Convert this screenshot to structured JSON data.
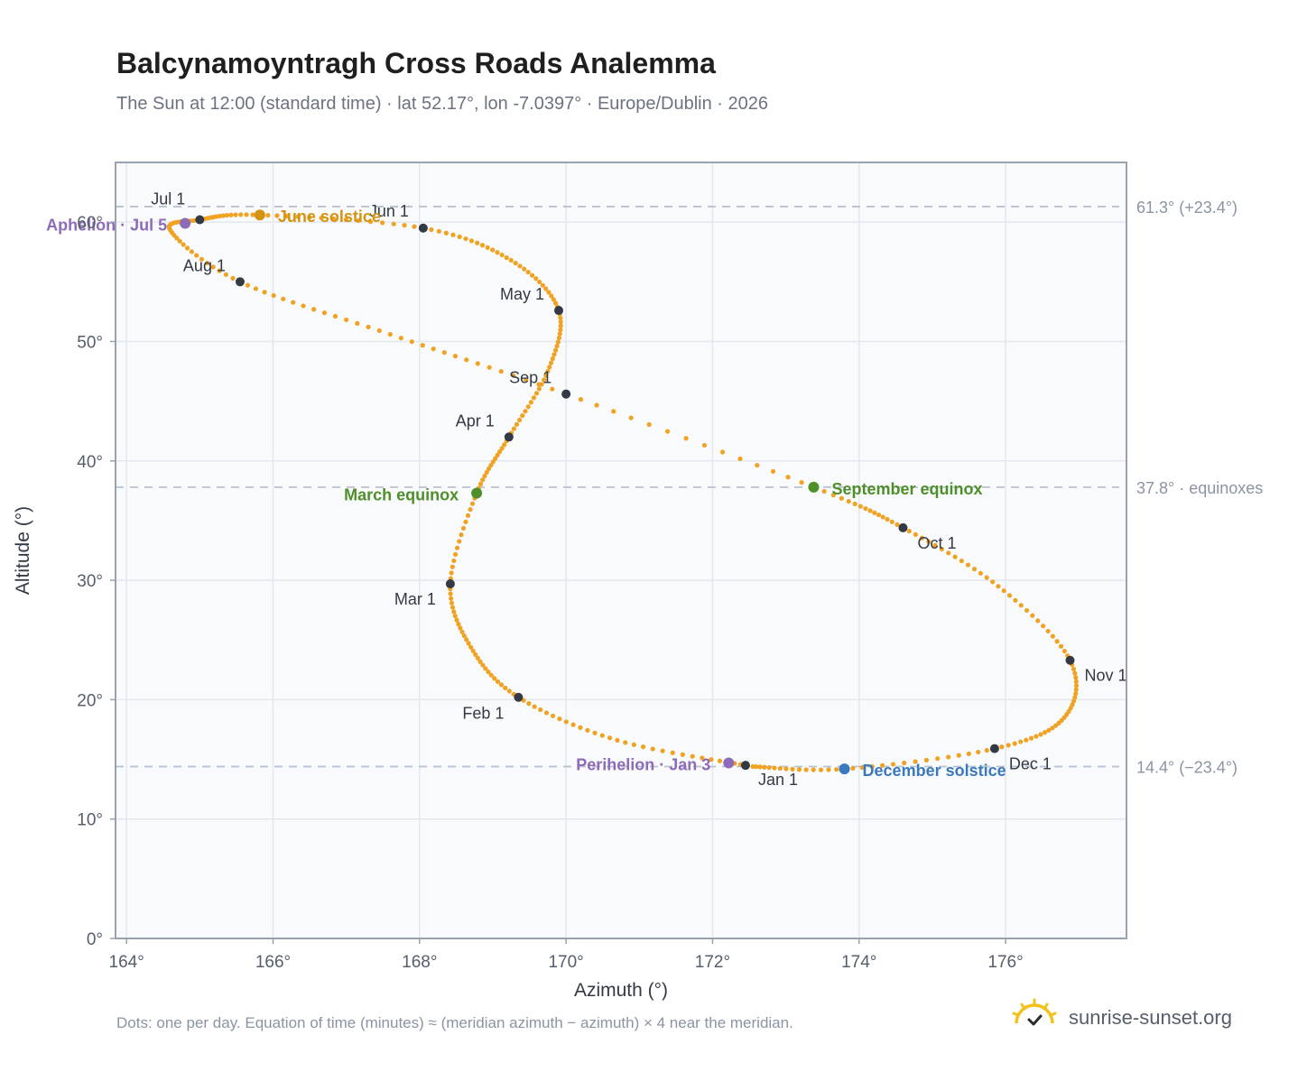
{
  "header": {
    "title": "Balcynamoyntragh Cross Roads Analemma",
    "subtitle": "The Sun at 12:00 (standard time) · lat 52.17°, lon -7.0397° · Europe/Dublin · 2026"
  },
  "footer": {
    "note": "Dots: one per day. Equation of time (minutes) ≈ (meridian azimuth − azimuth) × 4 near the meridian.",
    "brand": "sunrise-sunset.org",
    "brand_icon": "sun-logo-icon"
  },
  "colors": {
    "path": "#f0a323",
    "month_marker": "#333a44",
    "june_solstice": "#d4940f",
    "december_solstice": "#3a78bf",
    "equinox": "#4f8f2a",
    "apsis": "#8e6bb8",
    "plot_bg": "#f8fafc",
    "grid": "#e3e8ee",
    "reference_line": "#b8c2cf"
  },
  "chart_data": {
    "type": "scatter",
    "xlabel": "Azimuth (°)",
    "ylabel": "Altitude (°)",
    "xlim": [
      163.85,
      177.65
    ],
    "ylim": [
      0,
      65
    ],
    "x_ticks": [
      164,
      166,
      168,
      170,
      172,
      174,
      176
    ],
    "x_tick_labels": [
      "164°",
      "166°",
      "168°",
      "170°",
      "172°",
      "174°",
      "176°"
    ],
    "y_ticks": [
      0,
      10,
      20,
      30,
      40,
      50,
      60
    ],
    "y_tick_labels": [
      "0°",
      "10°",
      "20°",
      "30°",
      "40°",
      "50°",
      "60°"
    ],
    "grid": true,
    "path_keypoints": [
      {
        "date": "Jan 1",
        "az": 172.45,
        "alt": 14.5
      },
      {
        "date": "Jan 15",
        "az": 170.7,
        "alt": 16.6
      },
      {
        "date": "Feb 1",
        "az": 169.35,
        "alt": 20.2
      },
      {
        "date": "Feb 15",
        "az": 168.7,
        "alt": 24.4
      },
      {
        "date": "Mar 1",
        "az": 168.42,
        "alt": 29.7
      },
      {
        "date": "Mar 20",
        "az": 168.78,
        "alt": 37.3
      },
      {
        "date": "Apr 1",
        "az": 169.22,
        "alt": 42.0
      },
      {
        "date": "Apr 15",
        "az": 169.75,
        "alt": 47.5
      },
      {
        "date": "May 1",
        "az": 169.9,
        "alt": 52.6
      },
      {
        "date": "May 15",
        "az": 169.25,
        "alt": 56.8
      },
      {
        "date": "Jun 1",
        "az": 168.05,
        "alt": 59.5
      },
      {
        "date": "Jun 21",
        "az": 165.82,
        "alt": 60.6
      },
      {
        "date": "Jul 1",
        "az": 165.0,
        "alt": 60.2
      },
      {
        "date": "Jul 15",
        "az": 164.6,
        "alt": 59.3
      },
      {
        "date": "Aug 1",
        "az": 165.55,
        "alt": 55.0
      },
      {
        "date": "Aug 15",
        "az": 167.6,
        "alt": 50.6
      },
      {
        "date": "Sep 1",
        "az": 170.0,
        "alt": 45.6
      },
      {
        "date": "Sep 23",
        "az": 173.38,
        "alt": 37.8
      },
      {
        "date": "Oct 1",
        "az": 174.6,
        "alt": 34.4
      },
      {
        "date": "Oct 15",
        "az": 175.9,
        "alt": 29.5
      },
      {
        "date": "Nov 1",
        "az": 176.88,
        "alt": 23.3
      },
      {
        "date": "Nov 15",
        "az": 176.8,
        "alt": 18.5
      },
      {
        "date": "Dec 1",
        "az": 175.85,
        "alt": 15.9
      },
      {
        "date": "Dec 21",
        "az": 173.8,
        "alt": 14.2
      },
      {
        "date": "Dec 31",
        "az": 172.55,
        "alt": 14.4
      }
    ],
    "month_markers": [
      {
        "label": "Jan 1",
        "az": 172.45,
        "alt": 14.5,
        "anchor": "start",
        "dx": 14,
        "dy": 22
      },
      {
        "label": "Feb 1",
        "az": 169.35,
        "alt": 20.2,
        "anchor": "end",
        "dx": -16,
        "dy": 24
      },
      {
        "label": "Mar 1",
        "az": 168.42,
        "alt": 29.7,
        "anchor": "end",
        "dx": -16,
        "dy": 23
      },
      {
        "label": "Apr 1",
        "az": 169.22,
        "alt": 42.0,
        "anchor": "end",
        "dx": -16,
        "dy": -12
      },
      {
        "label": "May 1",
        "az": 169.9,
        "alt": 52.6,
        "anchor": "end",
        "dx": -16,
        "dy": -12
      },
      {
        "label": "Jun 1",
        "az": 168.05,
        "alt": 59.5,
        "anchor": "end",
        "dx": -16,
        "dy": -13
      },
      {
        "label": "Jul 1",
        "az": 165.0,
        "alt": 60.2,
        "anchor": "end",
        "dx": -16,
        "dy": -17
      },
      {
        "label": "Aug 1",
        "az": 165.55,
        "alt": 55.0,
        "anchor": "end",
        "dx": -16,
        "dy": -12
      },
      {
        "label": "Sep 1",
        "az": 170.0,
        "alt": 45.6,
        "anchor": "end",
        "dx": -16,
        "dy": -12
      },
      {
        "label": "Oct 1",
        "az": 174.6,
        "alt": 34.4,
        "anchor": "start",
        "dx": 16,
        "dy": 23
      },
      {
        "label": "Nov 1",
        "az": 176.88,
        "alt": 23.3,
        "anchor": "start",
        "dx": 16,
        "dy": 23
      },
      {
        "label": "Dec 1",
        "az": 175.85,
        "alt": 15.9,
        "anchor": "start",
        "dx": 16,
        "dy": 23
      }
    ],
    "events": [
      {
        "label": "June solstice",
        "az": 165.82,
        "alt": 60.6,
        "color_key": "june_solstice",
        "anchor": "start",
        "dx": 20,
        "dy": 8
      },
      {
        "label": "December solstice",
        "az": 173.8,
        "alt": 14.2,
        "color_key": "december_solstice",
        "anchor": "start",
        "dx": 20,
        "dy": 8
      },
      {
        "label": "March equinox",
        "az": 168.78,
        "alt": 37.3,
        "color_key": "equinox",
        "anchor": "end",
        "dx": -20,
        "dy": 8
      },
      {
        "label": "September equinox",
        "az": 173.38,
        "alt": 37.8,
        "color_key": "equinox",
        "anchor": "start",
        "dx": 20,
        "dy": 8
      },
      {
        "label": "Aphelion · Jul 5",
        "az": 164.8,
        "alt": 59.9,
        "color_key": "apsis",
        "anchor": "end",
        "dx": -20,
        "dy": 8
      },
      {
        "label": "Perihelion · Jan 3",
        "az": 172.22,
        "alt": 14.7,
        "color_key": "apsis",
        "anchor": "end",
        "dx": -20,
        "dy": 8
      }
    ],
    "reference_lines": [
      {
        "alt": 61.3,
        "label": "61.3° (+23.4°)"
      },
      {
        "alt": 37.8,
        "label": "37.8° · equinoxes"
      },
      {
        "alt": 14.4,
        "label": "14.4° (−23.4°)"
      }
    ]
  }
}
